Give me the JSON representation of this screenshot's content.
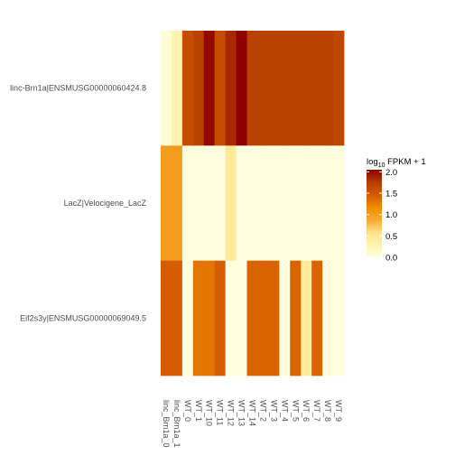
{
  "chart_data": {
    "type": "heatmap",
    "rows": [
      "linc-Brn1a|ENSMUSG00000060424.8",
      "LacZ|Velocigene_LacZ",
      "Eif2s3y|ENSMUSG00000069049.5"
    ],
    "columns": [
      "linc_Brn1a_0",
      "linc_Brn1a_1",
      "WT_0",
      "WT_1",
      "WT_10",
      "WT_11",
      "WT_12",
      "WT_13",
      "WT_14",
      "WT_2",
      "WT_3",
      "WT_4",
      "WT_5",
      "WT_6",
      "WT_7",
      "WT_8",
      "WT_9"
    ],
    "values": [
      [
        0.05,
        0.3,
        1.6,
        1.7,
        2.0,
        1.6,
        1.85,
        2.05,
        1.7,
        1.7,
        1.7,
        1.7,
        1.7,
        1.7,
        1.7,
        1.7,
        1.65
      ],
      [
        1.0,
        1.0,
        0.0,
        0.0,
        0.0,
        0.0,
        0.45,
        0.0,
        0.0,
        0.0,
        0.0,
        0.0,
        0.0,
        0.0,
        0.0,
        0.0,
        0.0
      ],
      [
        1.45,
        1.45,
        0.0,
        1.3,
        1.3,
        1.45,
        0.0,
        0.0,
        1.4,
        1.4,
        1.4,
        0.0,
        1.4,
        0.45,
        1.4,
        0.0,
        0.0
      ]
    ],
    "legend": {
      "title_prefix": "log",
      "title_sub": "10",
      "title_suffix": " FPKM + 1",
      "ticks": [
        2.0,
        1.5,
        1.0,
        0.5,
        0.0
      ],
      "tick_labels": [
        "2.0",
        "1.5",
        "1.0",
        "0.5",
        "0.0"
      ],
      "range": [
        0,
        2.05
      ]
    },
    "color_stops": [
      "#ffffe0",
      "#fff3b0",
      "#ffe088",
      "#f7a833",
      "#f08c00",
      "#d45a00",
      "#b43c00",
      "#8f0000"
    ],
    "grid": false,
    "legend_position": "right"
  }
}
